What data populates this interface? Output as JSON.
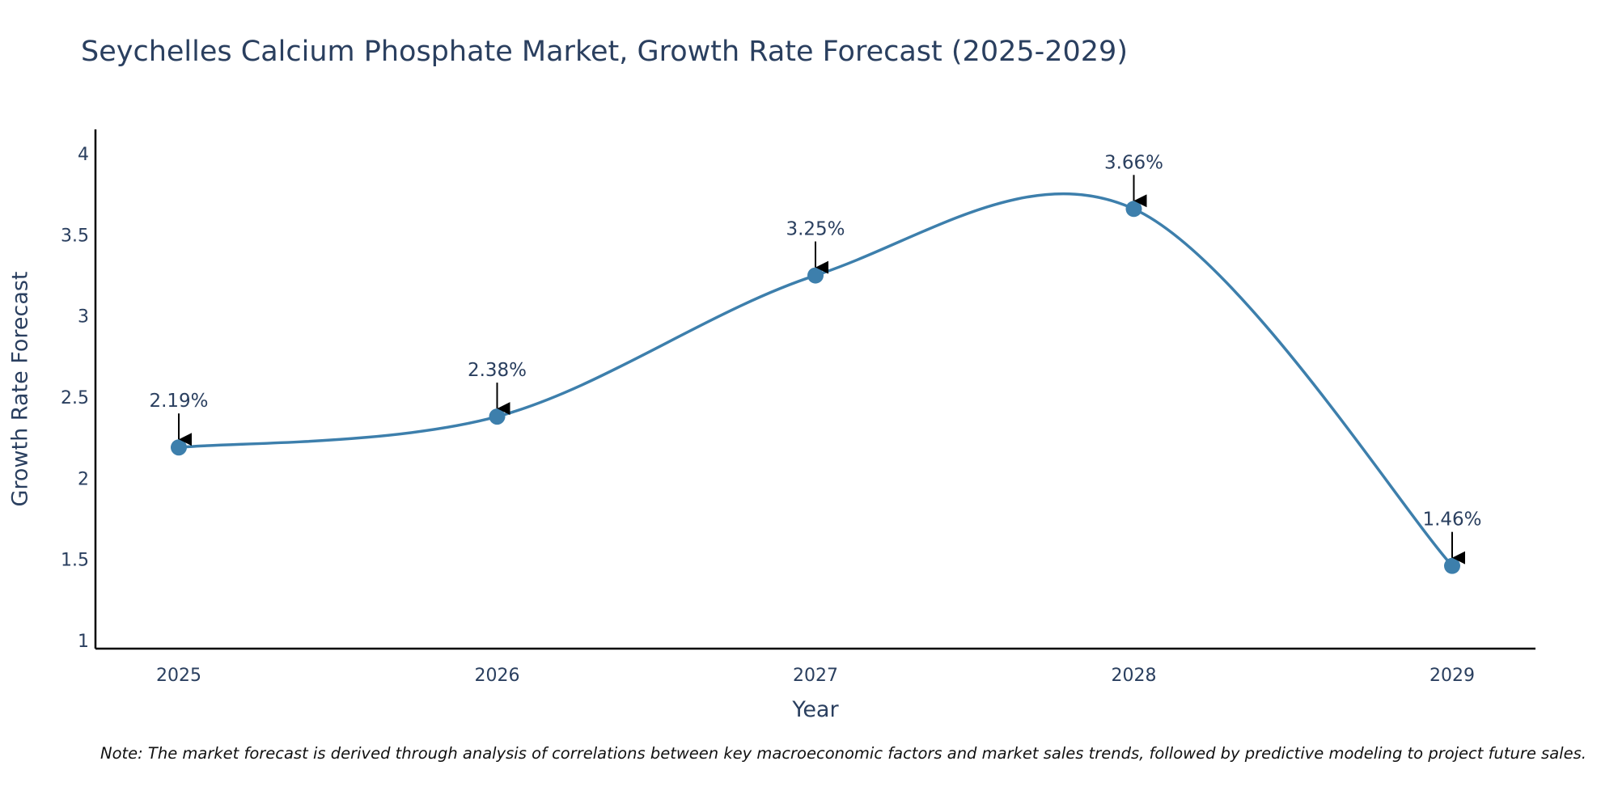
{
  "chart_data": {
    "type": "line",
    "title": "Seychelles Calcium Phosphate Market, Growth Rate Forecast (2025-2029)",
    "xlabel": "Year",
    "ylabel": "Growth Rate Forecast",
    "categories": [
      "2025",
      "2026",
      "2027",
      "2028",
      "2029"
    ],
    "values": [
      2.19,
      2.38,
      3.25,
      3.66,
      1.46
    ],
    "data_labels": [
      "2.19%",
      "2.38%",
      "3.25%",
      "3.66%",
      "1.46%"
    ],
    "ylim": [
      0.95,
      4.15
    ],
    "yticks": [
      1,
      1.5,
      2,
      2.5,
      3,
      3.5,
      4
    ],
    "ytick_labels": [
      "1",
      "1.5",
      "2",
      "2.5",
      "3",
      "3.5",
      "4"
    ],
    "grid": false,
    "line_shape": "spline",
    "note": "Note: The market forecast is derived through analysis of correlations between key macroeconomic factors and market sales trends, followed by predictive modeling to project future sales."
  },
  "colors": {
    "series": "#3d7fac",
    "text": "#2a3f5f",
    "axis": "#000000",
    "arrow": "#000000",
    "background": "#ffffff"
  }
}
